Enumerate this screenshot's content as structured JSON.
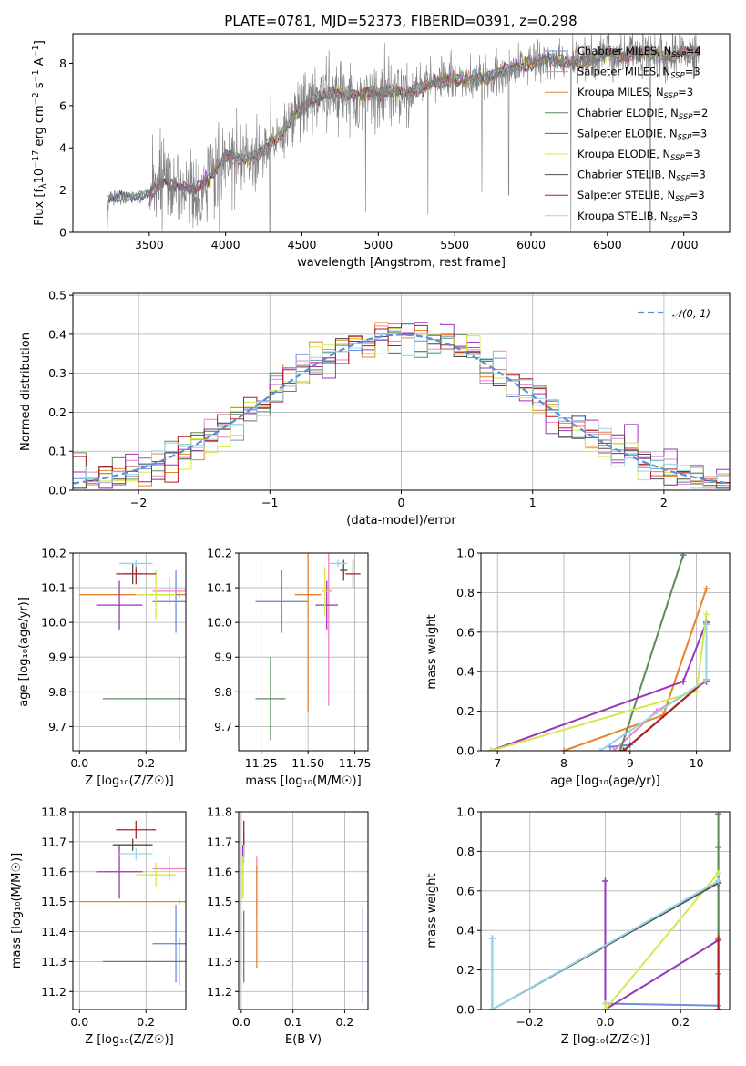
{
  "palette": {
    "Chabrier MILES": "#6a8fdc",
    "Salpeter MILES": "#ee82c6",
    "Kroupa MILES": "#e8822a",
    "Chabrier ELODIE": "#5b8a5c",
    "Salpeter ELODIE": "#9a36b8",
    "Kroupa ELODIE": "#d6e84c",
    "Chabrier STELIB": "#4d4d4d",
    "Salpeter STELIB": "#b21f1f",
    "Kroupa STELIB": "#98d4e6"
  },
  "chart_data": [
    {
      "id": "spectrum",
      "type": "line",
      "title": "PLATE=0781, MJD=52373, FIBERID=0391, z=0.298",
      "xlabel": "wavelength [Angstrom, rest frame]",
      "ylabel_pre": "Flux [f",
      "ylabel_sub": "λ",
      "ylabel_mid": "10",
      "ylabel_sup1": "−17",
      "ylabel_post": " erg cm",
      "ylabel_sup2": "−2",
      "ylabel_s": " s",
      "ylabel_sup3": "−1",
      "ylabel_A": " A",
      "ylabel_sup4": "−1",
      "ylabel_end": "]",
      "xlim": [
        3000,
        7300
      ],
      "ylim": [
        0,
        9.4
      ],
      "xticks": [
        3500,
        4000,
        4500,
        5000,
        5500,
        6000,
        6500,
        7000
      ],
      "yticks": [
        0,
        2,
        4,
        6,
        8
      ],
      "legend_position": "upper right",
      "data_envelope": [
        [
          3230,
          1.6
        ],
        [
          3500,
          1.8
        ],
        [
          3600,
          2.4
        ],
        [
          3700,
          2.2
        ],
        [
          3800,
          2.0
        ],
        [
          3900,
          2.6
        ],
        [
          4000,
          3.6
        ],
        [
          4100,
          3.5
        ],
        [
          4200,
          3.6
        ],
        [
          4300,
          4.2
        ],
        [
          4400,
          5.0
        ],
        [
          4500,
          5.9
        ],
        [
          4600,
          6.4
        ],
        [
          4700,
          6.6
        ],
        [
          4800,
          6.5
        ],
        [
          4900,
          6.5
        ],
        [
          5000,
          6.6
        ],
        [
          5100,
          6.7
        ],
        [
          5200,
          6.6
        ],
        [
          5300,
          6.9
        ],
        [
          5400,
          7.1
        ],
        [
          5500,
          7.3
        ],
        [
          5600,
          7.2
        ],
        [
          5700,
          7.3
        ],
        [
          5800,
          7.6
        ],
        [
          5900,
          7.8
        ],
        [
          6000,
          8.0
        ],
        [
          6100,
          8.2
        ],
        [
          6200,
          8.1
        ],
        [
          6300,
          8.0
        ],
        [
          6400,
          8.2
        ],
        [
          6500,
          8.5
        ],
        [
          6600,
          8.3
        ],
        [
          6700,
          8.5
        ],
        [
          6800,
          8.4
        ],
        [
          6900,
          8.3
        ],
        [
          7000,
          8.5
        ],
        [
          7100,
          8.5
        ]
      ],
      "series": [
        {
          "label": "Chabrier MILES",
          "nssp": "4"
        },
        {
          "label": "Salpeter MILES",
          "nssp": "3"
        },
        {
          "label": "Kroupa MILES",
          "nssp": "3"
        },
        {
          "label": "Chabrier ELODIE",
          "nssp": "2"
        },
        {
          "label": "Salpeter ELODIE",
          "nssp": "3"
        },
        {
          "label": "Kroupa ELODIE",
          "nssp": "3"
        },
        {
          "label": "Chabrier STELIB",
          "nssp": "3"
        },
        {
          "label": "Salpeter STELIB",
          "nssp": "3"
        },
        {
          "label": "Kroupa STELIB",
          "nssp": "3"
        }
      ],
      "legend_suffix_pre": ", N",
      "legend_suffix_sub": "SSP",
      "legend_suffix_eq": "="
    },
    {
      "id": "residuals",
      "type": "line",
      "xlabel": "(data-model)/error",
      "ylabel": "Normed distribution",
      "xlim": [
        -2.5,
        2.5
      ],
      "ylim": [
        0,
        0.505
      ],
      "xticks": [
        -2,
        -1,
        0,
        1,
        2
      ],
      "yticks": [
        0.0,
        0.1,
        0.2,
        0.3,
        0.4,
        0.5
      ],
      "xticklabels": [
        "−2",
        "−1",
        "0",
        "1",
        "2"
      ],
      "yticklabels": [
        "0.0",
        "0.1",
        "0.2",
        "0.3",
        "0.4",
        "0.5"
      ],
      "grid": true,
      "legend_label": "𝒩(0, 1)",
      "legend_position": "upper right",
      "gaussian_color": "#5a8fd4",
      "bin_width": 0.1
    },
    {
      "id": "z_age",
      "type": "scatter",
      "xlabel": "Z [log₁₀(Z/Z☉)]",
      "ylabel": "age  [log₁₀(age/yr)]",
      "xlim": [
        -0.02,
        0.32
      ],
      "ylim": [
        9.63,
        10.2
      ],
      "xticks": [
        0.0,
        0.2
      ],
      "yticks": [
        9.7,
        9.8,
        9.9,
        10.0,
        10.1,
        10.2
      ],
      "xticklabels": [
        "0.0",
        "0.2"
      ],
      "yticklabels": [
        "9.7",
        "9.8",
        "9.9",
        "10.0",
        "10.1",
        "10.2"
      ],
      "points": [
        {
          "s": "Chabrier MILES",
          "x": 0.29,
          "y": 10.06,
          "xerr": 0.07,
          "yerr": 0.09
        },
        {
          "s": "Salpeter MILES",
          "x": 0.27,
          "y": 10.09,
          "xerr": 0.05,
          "yerr": 0.04
        },
        {
          "s": "Kroupa MILES",
          "x": 0.3,
          "y": 10.08,
          "xerr": 0.3,
          "yerr": 0.01
        },
        {
          "s": "Chabrier ELODIE",
          "x": 0.3,
          "y": 9.78,
          "xerr": 0.23,
          "yerr": 0.12
        },
        {
          "s": "Salpeter ELODIE",
          "x": 0.12,
          "y": 10.05,
          "xerr": 0.07,
          "yerr": 0.07
        },
        {
          "s": "Kroupa ELODIE",
          "x": 0.23,
          "y": 10.08,
          "xerr": 0.06,
          "yerr": 0.07
        },
        {
          "s": "Chabrier STELIB",
          "x": 0.16,
          "y": 10.14,
          "xerr": 0.03,
          "yerr": 0.03
        },
        {
          "s": "Salpeter STELIB",
          "x": 0.17,
          "y": 10.14,
          "xerr": 0.06,
          "yerr": 0.03
        },
        {
          "s": "Kroupa STELIB",
          "x": 0.17,
          "y": 10.17,
          "xerr": 0.05,
          "yerr": 0.01
        }
      ]
    },
    {
      "id": "mass_age",
      "type": "scatter",
      "xlabel": "mass [log₁₀(M/M☉)]",
      "xlim": [
        11.13,
        11.82
      ],
      "ylim": [
        9.63,
        10.2
      ],
      "xticks": [
        11.25,
        11.5,
        11.75
      ],
      "yticks": [
        9.7,
        9.8,
        9.9,
        10.0,
        10.1,
        10.2
      ],
      "xticklabels": [
        "11.25",
        "11.50",
        "11.75"
      ],
      "yticklabels": [
        "9.7",
        "9.8",
        "9.9",
        "10.0",
        "10.1",
        "10.2"
      ],
      "points": [
        {
          "s": "Chabrier MILES",
          "x": 11.36,
          "y": 10.06,
          "xerr": 0.14,
          "yerr": 0.09
        },
        {
          "s": "Salpeter MILES",
          "x": 11.61,
          "y": 10.09,
          "xerr": 0.02,
          "yerr": 0.33
        },
        {
          "s": "Kroupa MILES",
          "x": 11.5,
          "y": 10.08,
          "xerr": 0.07,
          "yerr": 0.34
        },
        {
          "s": "Chabrier ELODIE",
          "x": 11.3,
          "y": 9.78,
          "xerr": 0.08,
          "yerr": 0.12
        },
        {
          "s": "Salpeter ELODIE",
          "x": 11.6,
          "y": 10.05,
          "xerr": 0.06,
          "yerr": 0.07
        },
        {
          "s": "Kroupa ELODIE",
          "x": 11.59,
          "y": 10.09,
          "xerr": 0.02,
          "yerr": 0.07
        },
        {
          "s": "Chabrier STELIB",
          "x": 11.69,
          "y": 10.15,
          "xerr": 0.02,
          "yerr": 0.03
        },
        {
          "s": "Salpeter STELIB",
          "x": 11.74,
          "y": 10.14,
          "xerr": 0.04,
          "yerr": 0.04
        },
        {
          "s": "Kroupa STELIB",
          "x": 11.66,
          "y": 10.17,
          "xerr": 0.05,
          "yerr": 0.01
        }
      ]
    },
    {
      "id": "age_cumweight",
      "type": "line",
      "xlabel": "age  [log₁₀(age/yr)]",
      "ylabel": "mass weight",
      "xlim": [
        6.75,
        10.5
      ],
      "ylim": [
        0,
        1
      ],
      "xticks": [
        7,
        8,
        9,
        10
      ],
      "yticks": [
        0.0,
        0.2,
        0.4,
        0.6,
        0.8,
        1.0
      ],
      "xticklabels": [
        "7",
        "8",
        "9",
        "10"
      ],
      "yticklabels": [
        "0.0",
        "0.2",
        "0.4",
        "0.6",
        "0.8",
        "1.0"
      ],
      "series": [
        {
          "s": "Chabrier MILES",
          "x": [
            8.7,
            9.0,
            10.15,
            10.15
          ],
          "y": [
            0.02,
            0.03,
            0.36,
            0.65
          ]
        },
        {
          "s": "Salpeter MILES",
          "x": [
            8.75,
            9.4,
            10.15,
            10.15
          ],
          "y": [
            0.0,
            0.2,
            0.35,
            0.65
          ]
        },
        {
          "s": "Kroupa MILES",
          "x": [
            8.0,
            9.5,
            10.15
          ],
          "y": [
            0.0,
            0.18,
            0.82
          ]
        },
        {
          "s": "Chabrier ELODIE",
          "x": [
            8.85,
            9.8
          ],
          "y": [
            0.0,
            0.99
          ]
        },
        {
          "s": "Salpeter ELODIE",
          "x": [
            6.9,
            9.8,
            10.15,
            10.15
          ],
          "y": [
            0.0,
            0.35,
            0.65,
            0.35
          ]
        },
        {
          "s": "Kroupa ELODIE",
          "x": [
            6.9,
            10.0,
            10.15
          ],
          "y": [
            0.0,
            0.3,
            0.69
          ]
        },
        {
          "s": "Chabrier STELIB",
          "x": [
            8.9,
            10.15,
            10.15
          ],
          "y": [
            0.0,
            0.36,
            0.64
          ]
        },
        {
          "s": "Salpeter STELIB",
          "x": [
            8.9,
            10.15
          ],
          "y": [
            0.0,
            0.36
          ]
        },
        {
          "s": "Kroupa STELIB",
          "x": [
            8.55,
            10.15,
            10.15
          ],
          "y": [
            0.0,
            0.36,
            0.64
          ]
        }
      ]
    },
    {
      "id": "z_mass",
      "type": "scatter",
      "xlabel": "Z [log₁₀(Z/Z☉)]",
      "ylabel": "mass [log₁₀(M/M☉)]",
      "xlim": [
        -0.02,
        0.32
      ],
      "ylim": [
        11.14,
        11.8
      ],
      "xticks": [
        0.0,
        0.2
      ],
      "yticks": [
        11.2,
        11.3,
        11.4,
        11.5,
        11.6,
        11.7,
        11.8
      ],
      "xticklabels": [
        "0.0",
        "0.2"
      ],
      "yticklabels": [
        "11.2",
        "11.3",
        "11.4",
        "11.5",
        "11.6",
        "11.7",
        "11.8"
      ],
      "points": [
        {
          "s": "Chabrier MILES",
          "x": 0.29,
          "y": 11.36,
          "xerr": 0.07,
          "yerr": 0.13
        },
        {
          "s": "Salpeter MILES",
          "x": 0.27,
          "y": 11.61,
          "xerr": 0.05,
          "yerr": 0.04
        },
        {
          "s": "Kroupa MILES",
          "x": 0.3,
          "y": 11.5,
          "xerr": 0.3,
          "yerr": 0.01
        },
        {
          "s": "Chabrier ELODIE",
          "x": 0.3,
          "y": 11.3,
          "xerr": 0.23,
          "yerr": 0.08
        },
        {
          "s": "Salpeter ELODIE",
          "x": 0.12,
          "y": 11.6,
          "xerr": 0.07,
          "yerr": 0.09
        },
        {
          "s": "Kroupa ELODIE",
          "x": 0.23,
          "y": 11.59,
          "xerr": 0.06,
          "yerr": 0.04
        },
        {
          "s": "Chabrier STELIB",
          "x": 0.16,
          "y": 11.69,
          "xerr": 0.06,
          "yerr": 0.02
        },
        {
          "s": "Salpeter STELIB",
          "x": 0.17,
          "y": 11.74,
          "xerr": 0.06,
          "yerr": 0.03
        },
        {
          "s": "Kroupa STELIB",
          "x": 0.17,
          "y": 11.66,
          "xerr": 0.05,
          "yerr": 0.02
        }
      ]
    },
    {
      "id": "ebv_mass",
      "type": "scatter",
      "xlabel": "E(B-V)",
      "xlim": [
        -0.005,
        0.245
      ],
      "ylim": [
        11.14,
        11.8
      ],
      "xticks": [
        0.0,
        0.1,
        0.2
      ],
      "yticks": [
        11.2,
        11.3,
        11.4,
        11.5,
        11.6,
        11.7,
        11.8
      ],
      "xticklabels": [
        "0.0",
        "0.1",
        "0.2"
      ],
      "yticklabels": [
        "11.2",
        "11.3",
        "11.4",
        "11.5",
        "11.6",
        "11.7",
        "11.8"
      ],
      "points": [
        {
          "s": "Chabrier MILES",
          "x": 0.235,
          "y": 11.32,
          "xerr": 0.0,
          "yerr": 0.16
        },
        {
          "s": "Salpeter MILES",
          "x": 0.03,
          "y": 11.55,
          "xerr": 0.0,
          "yerr": 0.1
        },
        {
          "s": "Kroupa MILES",
          "x": 0.03,
          "y": 11.45,
          "xerr": 0.0,
          "yerr": 0.17
        },
        {
          "s": "Chabrier ELODIE",
          "x": 0.005,
          "y": 11.35,
          "xerr": 0.0,
          "yerr": 0.12
        },
        {
          "s": "Salpeter ELODIE",
          "x": 0.003,
          "y": 11.6,
          "xerr": 0.0,
          "yerr": 0.09
        },
        {
          "s": "Kroupa ELODIE",
          "x": 0.003,
          "y": 11.58,
          "xerr": 0.0,
          "yerr": 0.07
        },
        {
          "s": "Chabrier STELIB",
          "x": 0.005,
          "y": 11.69,
          "xerr": 0.0,
          "yerr": 0.04
        },
        {
          "s": "Salpeter STELIB",
          "x": 0.005,
          "y": 11.72,
          "xerr": 0.0,
          "yerr": 0.05
        },
        {
          "s": "Kroupa STELIB",
          "x": 0.005,
          "y": 11.66,
          "xerr": 0.0,
          "yerr": 0.03
        }
      ]
    },
    {
      "id": "z_cumweight",
      "type": "line",
      "xlabel": "Z [log₁₀(Z/Z☉)]",
      "ylabel": "mass weight",
      "xlim": [
        -0.33,
        0.33
      ],
      "ylim": [
        0,
        1
      ],
      "xticks": [
        -0.2,
        0.0,
        0.2
      ],
      "yticks": [
        0.0,
        0.2,
        0.4,
        0.6,
        0.8,
        1.0
      ],
      "xticklabels": [
        "−0.2",
        "0.0",
        "0.2"
      ],
      "yticklabels": [
        "0.0",
        "0.2",
        "0.4",
        "0.6",
        "0.8",
        "1.0"
      ],
      "series": [
        {
          "s": "Chabrier MILES",
          "x": [
            0.0,
            0.3,
            0.3
          ],
          "y": [
            0.03,
            0.02,
            0.64
          ]
        },
        {
          "s": "Salpeter MILES",
          "x": [
            0.3,
            0.3
          ],
          "y": [
            0.0,
            0.65
          ]
        },
        {
          "s": "Kroupa MILES",
          "x": [
            0.3,
            0.3,
            0.3
          ],
          "y": [
            0.0,
            0.18,
            0.82
          ]
        },
        {
          "s": "Chabrier ELODIE",
          "x": [
            0.3,
            0.3
          ],
          "y": [
            0.0,
            0.99
          ]
        },
        {
          "s": "Salpeter ELODIE",
          "x": [
            0.0,
            0.0,
            0.3
          ],
          "y": [
            0.65,
            0.0,
            0.35
          ]
        },
        {
          "s": "Kroupa ELODIE",
          "x": [
            0.0,
            0.0,
            0.3
          ],
          "y": [
            0.03,
            0.0,
            0.69
          ]
        },
        {
          "s": "Chabrier STELIB",
          "x": [
            -0.3,
            -0.3,
            0.3
          ],
          "y": [
            0.36,
            0.0,
            0.64
          ]
        },
        {
          "s": "Salpeter STELIB",
          "x": [
            0.3,
            0.3
          ],
          "y": [
            0.0,
            0.36
          ]
        },
        {
          "s": "Kroupa STELIB",
          "x": [
            -0.3,
            -0.3,
            0.3
          ],
          "y": [
            0.36,
            0.0,
            0.65
          ]
        }
      ]
    }
  ]
}
